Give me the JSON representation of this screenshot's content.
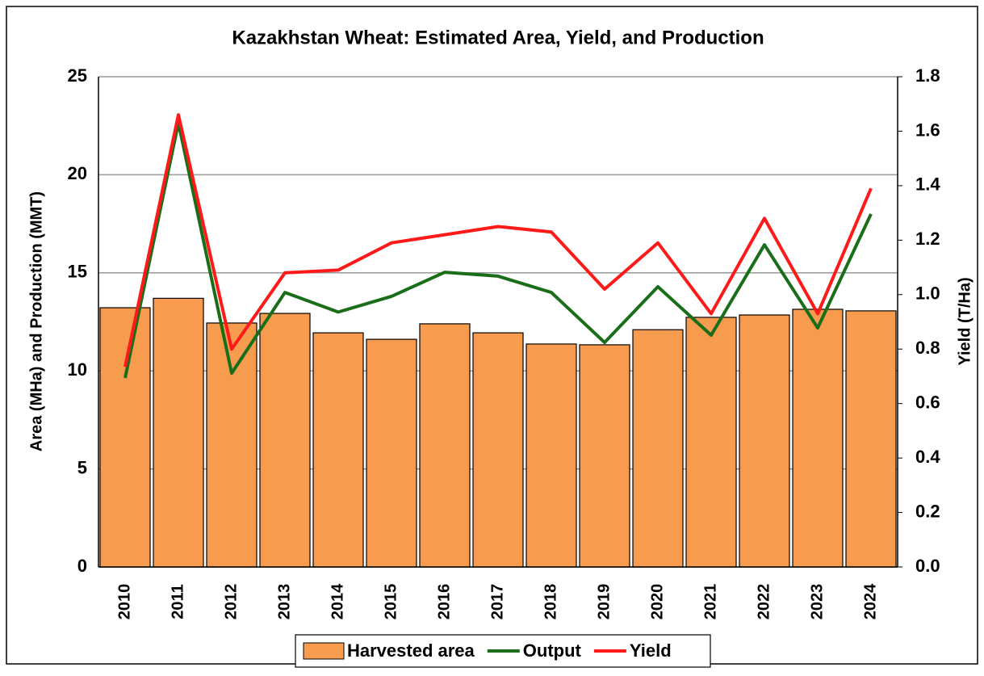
{
  "chart_data": {
    "type": "bar_line",
    "title": "Kazakhstan Wheat: Estimated Area, Yield, and Production",
    "y_label": "Area (MHa) and Production  (MMT)",
    "y2_label": "Yield (T/Ha)",
    "categories": [
      "2010",
      "2011",
      "2012",
      "2013",
      "2014",
      "2015",
      "2016",
      "2017",
      "2018",
      "2019",
      "2020",
      "2021",
      "2022",
      "2023",
      "2024"
    ],
    "series": [
      {
        "name": "Harvested area",
        "type": "bar",
        "color": "#f79b4f",
        "values": [
          13.22,
          13.7,
          12.44,
          12.93,
          11.94,
          11.61,
          12.4,
          11.94,
          11.37,
          11.33,
          12.1,
          12.73,
          12.85,
          13.14,
          13.06
        ]
      },
      {
        "name": "Output",
        "type": "line",
        "color": "#1a6e1a",
        "values": [
          9.64,
          22.65,
          9.88,
          14.0,
          13.0,
          13.8,
          15.03,
          14.83,
          14.0,
          11.45,
          14.29,
          11.82,
          16.43,
          12.19,
          18.0
        ]
      },
      {
        "name": "Yield",
        "type": "line",
        "axis": "y2",
        "color": "#ff1a1a",
        "values": [
          0.735,
          1.66,
          0.8,
          1.08,
          1.09,
          1.19,
          1.22,
          1.25,
          1.23,
          1.02,
          1.19,
          0.93,
          1.28,
          0.93,
          1.39
        ]
      }
    ],
    "ylim": [
      0,
      25
    ],
    "yticks": [
      0,
      5,
      10,
      15,
      20,
      25
    ],
    "y2lim": [
      0,
      1.8
    ],
    "y2ticks": [
      {
        "value": 0,
        "label": "0.0"
      },
      0.2,
      0.4,
      0.6,
      0.8,
      {
        "value": 1,
        "label": "1.0"
      },
      1.2,
      1.4,
      1.6,
      1.8
    ],
    "grid": true,
    "legend": "bottom"
  }
}
